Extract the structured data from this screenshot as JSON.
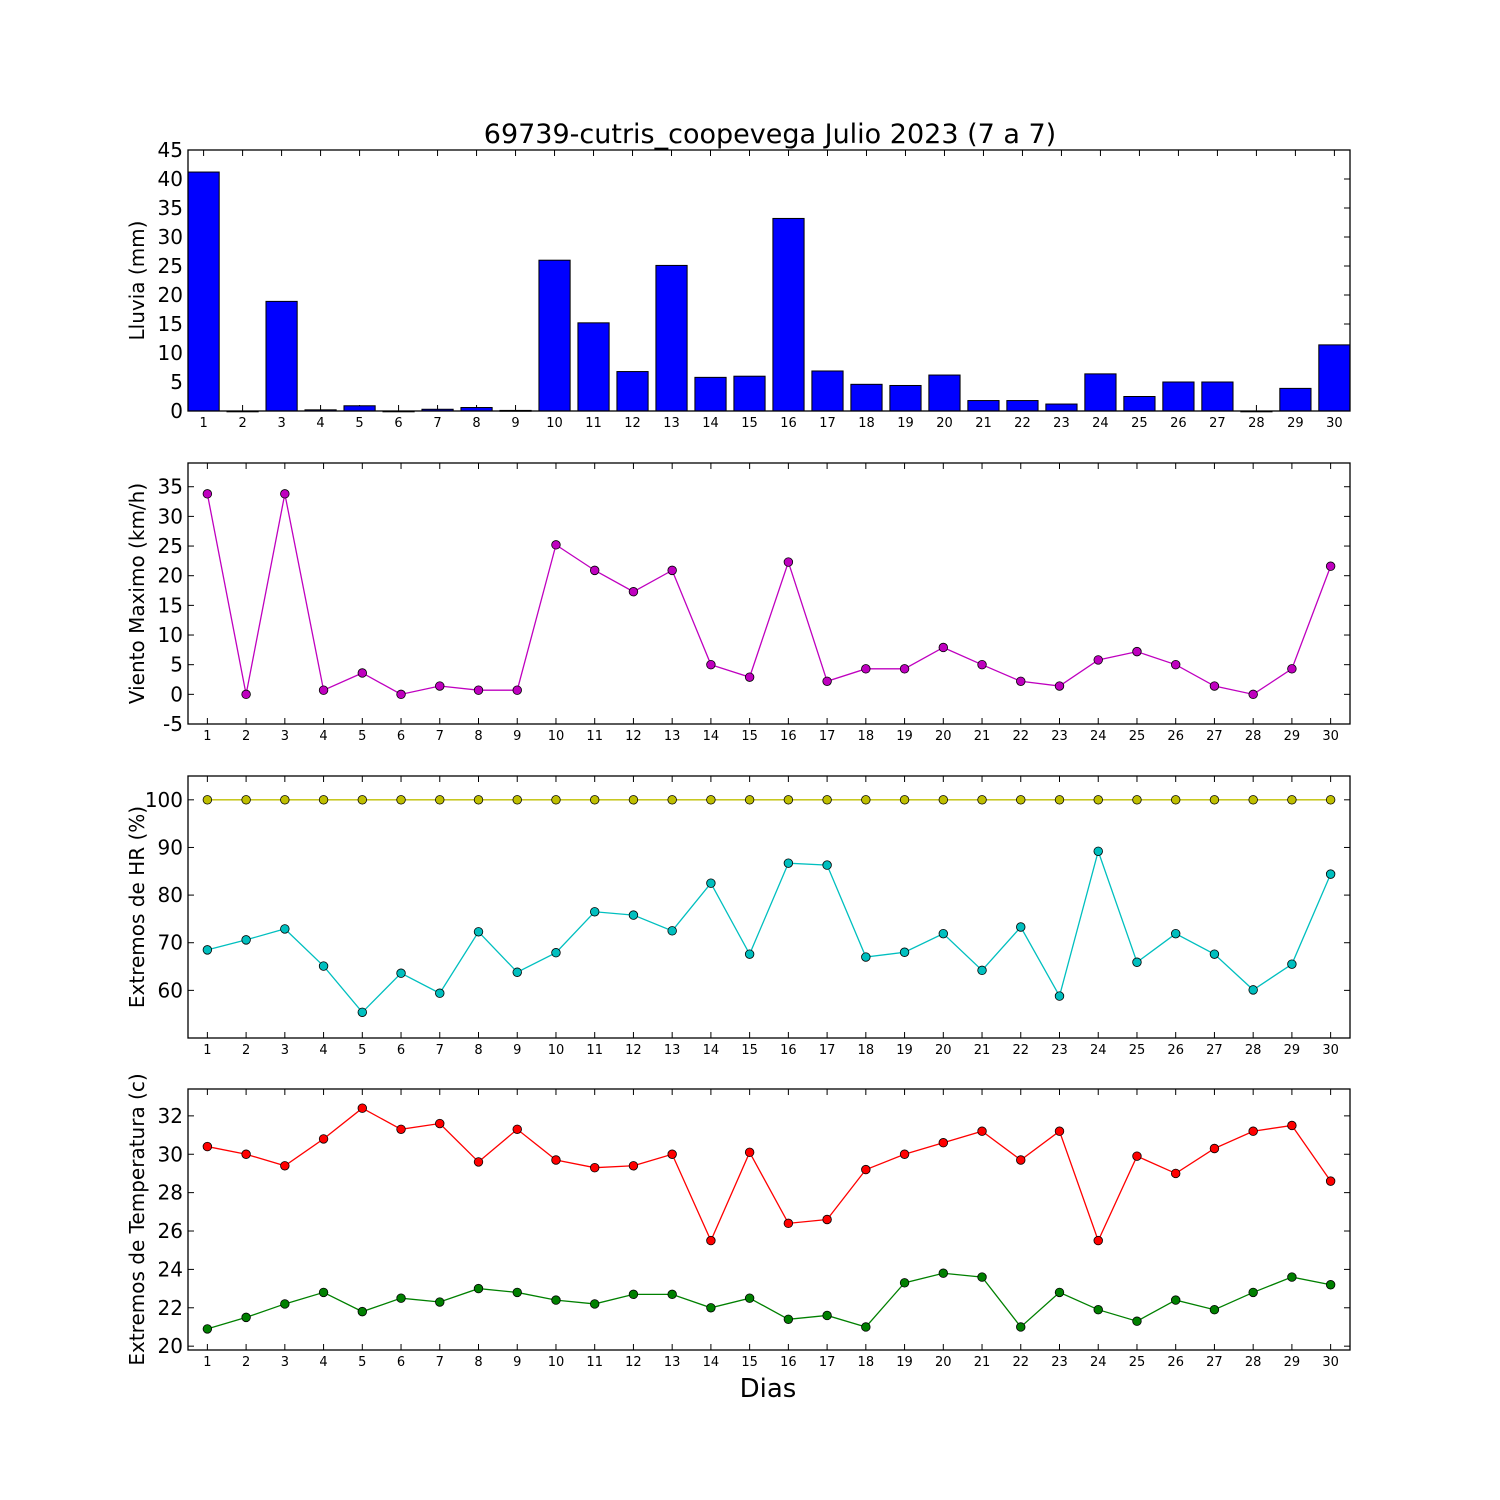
{
  "figure": {
    "title": "69739-cutris_coopevega Julio 2023  (7 a 7)",
    "xlabel": "Dias"
  },
  "chart_data": [
    {
      "type": "bar",
      "ylabel": "Lluvia (mm)",
      "ylim": [
        0,
        45
      ],
      "yticks": [
        0,
        5,
        10,
        15,
        20,
        25,
        30,
        35,
        40,
        45
      ],
      "categories": [
        1,
        2,
        3,
        4,
        5,
        6,
        7,
        8,
        9,
        10,
        11,
        12,
        13,
        14,
        15,
        16,
        17,
        18,
        19,
        20,
        21,
        22,
        23,
        24,
        25,
        26,
        27,
        28,
        29,
        30
      ],
      "series": [
        {
          "color": "#0000ff",
          "values": [
            41.2,
            0,
            18.9,
            0.2,
            0.9,
            0,
            0.3,
            0.6,
            0.1,
            26.0,
            15.2,
            6.8,
            25.1,
            5.8,
            6.0,
            33.2,
            6.9,
            4.6,
            4.4,
            6.2,
            1.8,
            1.8,
            1.2,
            6.4,
            2.5,
            5.0,
            5.0,
            0,
            3.9,
            11.4
          ]
        }
      ]
    },
    {
      "type": "line",
      "ylabel": "Viento Maximo (km/h)",
      "ylim": [
        -5,
        39
      ],
      "yticks": [
        -5,
        0,
        5,
        10,
        15,
        20,
        25,
        30,
        35
      ],
      "x": [
        1,
        2,
        3,
        4,
        5,
        6,
        7,
        8,
        9,
        10,
        11,
        12,
        13,
        14,
        15,
        16,
        17,
        18,
        19,
        20,
        21,
        22,
        23,
        24,
        25,
        26,
        27,
        28,
        29,
        30
      ],
      "series": [
        {
          "color": "#bf00bf",
          "values": [
            33.8,
            0,
            33.8,
            0.7,
            3.6,
            0,
            1.4,
            0.7,
            0.7,
            25.2,
            20.9,
            17.3,
            20.9,
            5.0,
            2.9,
            22.3,
            2.2,
            4.3,
            4.3,
            7.9,
            5.0,
            2.2,
            1.4,
            5.8,
            7.2,
            5.0,
            1.4,
            0,
            4.3,
            21.6
          ]
        }
      ]
    },
    {
      "type": "line",
      "ylabel": "Extremos de HR (%)",
      "ylim": [
        50,
        105
      ],
      "yticks": [
        60,
        70,
        80,
        90,
        100
      ],
      "x": [
        1,
        2,
        3,
        4,
        5,
        6,
        7,
        8,
        9,
        10,
        11,
        12,
        13,
        14,
        15,
        16,
        17,
        18,
        19,
        20,
        21,
        22,
        23,
        24,
        25,
        26,
        27,
        28,
        29,
        30
      ],
      "series": [
        {
          "color": "#bfbf00",
          "values": [
            100,
            100,
            100,
            100,
            100,
            100,
            100,
            100,
            100,
            100,
            100,
            100,
            100,
            100,
            100,
            100,
            100,
            100,
            100,
            100,
            100,
            100,
            100,
            100,
            100,
            100,
            100,
            100,
            100,
            100
          ]
        },
        {
          "color": "#00bfbf",
          "values": [
            68.5,
            70.6,
            72.9,
            65.1,
            55.4,
            63.6,
            59.4,
            72.3,
            63.8,
            67.9,
            76.5,
            75.8,
            72.5,
            82.5,
            67.6,
            86.7,
            86.3,
            67.0,
            68.0,
            71.9,
            64.2,
            73.3,
            58.8,
            89.2,
            65.9,
            71.9,
            67.6,
            60.1,
            65.5,
            84.4
          ]
        }
      ]
    },
    {
      "type": "line",
      "ylabel": "Extremos de Temperatura (c)",
      "ylim": [
        19.8,
        33.4
      ],
      "yticks": [
        20,
        22,
        24,
        26,
        28,
        30,
        32
      ],
      "x": [
        1,
        2,
        3,
        4,
        5,
        6,
        7,
        8,
        9,
        10,
        11,
        12,
        13,
        14,
        15,
        16,
        17,
        18,
        19,
        20,
        21,
        22,
        23,
        24,
        25,
        26,
        27,
        28,
        29,
        30
      ],
      "series": [
        {
          "color": "#ff0000",
          "values": [
            30.4,
            30.0,
            29.4,
            30.8,
            32.4,
            31.3,
            31.6,
            29.6,
            31.3,
            29.7,
            29.3,
            29.4,
            30.0,
            25.5,
            30.1,
            26.4,
            26.6,
            29.2,
            30.0,
            30.6,
            31.2,
            29.7,
            31.2,
            25.5,
            29.9,
            29.0,
            30.3,
            31.2,
            31.5,
            28.6
          ]
        },
        {
          "color": "#008000",
          "values": [
            20.9,
            21.5,
            22.2,
            22.8,
            21.8,
            22.5,
            22.3,
            23.0,
            22.8,
            22.4,
            22.2,
            22.7,
            22.7,
            22.0,
            22.5,
            21.4,
            21.6,
            21.0,
            23.3,
            23.8,
            23.6,
            21.0,
            22.8,
            21.9,
            21.3,
            22.4,
            21.9,
            22.8,
            23.6,
            23.2
          ]
        }
      ]
    }
  ]
}
